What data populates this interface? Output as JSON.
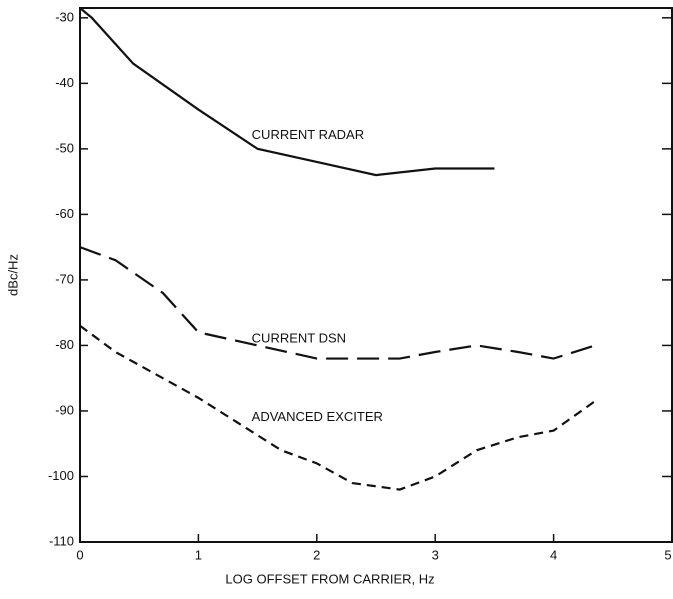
{
  "chart_data": {
    "type": "line",
    "xlabel": "LOG OFFSET FROM CARRIER, Hz",
    "ylabel": "dBc/Hz",
    "xlim": [
      0,
      5
    ],
    "xticks": [
      0,
      1,
      2,
      3,
      4,
      5
    ],
    "ylim": [
      -110,
      -28.5
    ],
    "yticks": [
      -110,
      -100,
      -90,
      -80,
      -70,
      -60,
      -50,
      -40,
      -30
    ],
    "color": "#111111",
    "series": [
      {
        "name": "CURRENT RADAR",
        "x": [
          0,
          0.1,
          0.45,
          1,
          1.5,
          2,
          2.5,
          3,
          3.5
        ],
        "values": [
          -28.5,
          -30,
          -37,
          -44,
          -50,
          -52,
          -54,
          -53,
          -53
        ]
      },
      {
        "name": "CURRENT DSN",
        "x": [
          0,
          0.3,
          0.7,
          1,
          1.5,
          2,
          2.5,
          2.7,
          3,
          3.35,
          3.7,
          4,
          4.35
        ],
        "values": [
          -65,
          -67,
          -72,
          -78,
          -80,
          -82,
          -82,
          -82,
          -81,
          -80,
          -81,
          -82,
          -80
        ]
      },
      {
        "name": "ADVANCED EXCITER",
        "x": [
          0,
          0.3,
          0.7,
          1,
          1.35,
          1.7,
          2,
          2.3,
          2.7,
          3,
          3.35,
          3.7,
          4,
          4.35
        ],
        "values": [
          -77,
          -81,
          -85,
          -88,
          -92,
          -96,
          -98,
          -101,
          -102,
          -100,
          -96,
          -94,
          -93,
          -88.5
        ]
      }
    ]
  }
}
